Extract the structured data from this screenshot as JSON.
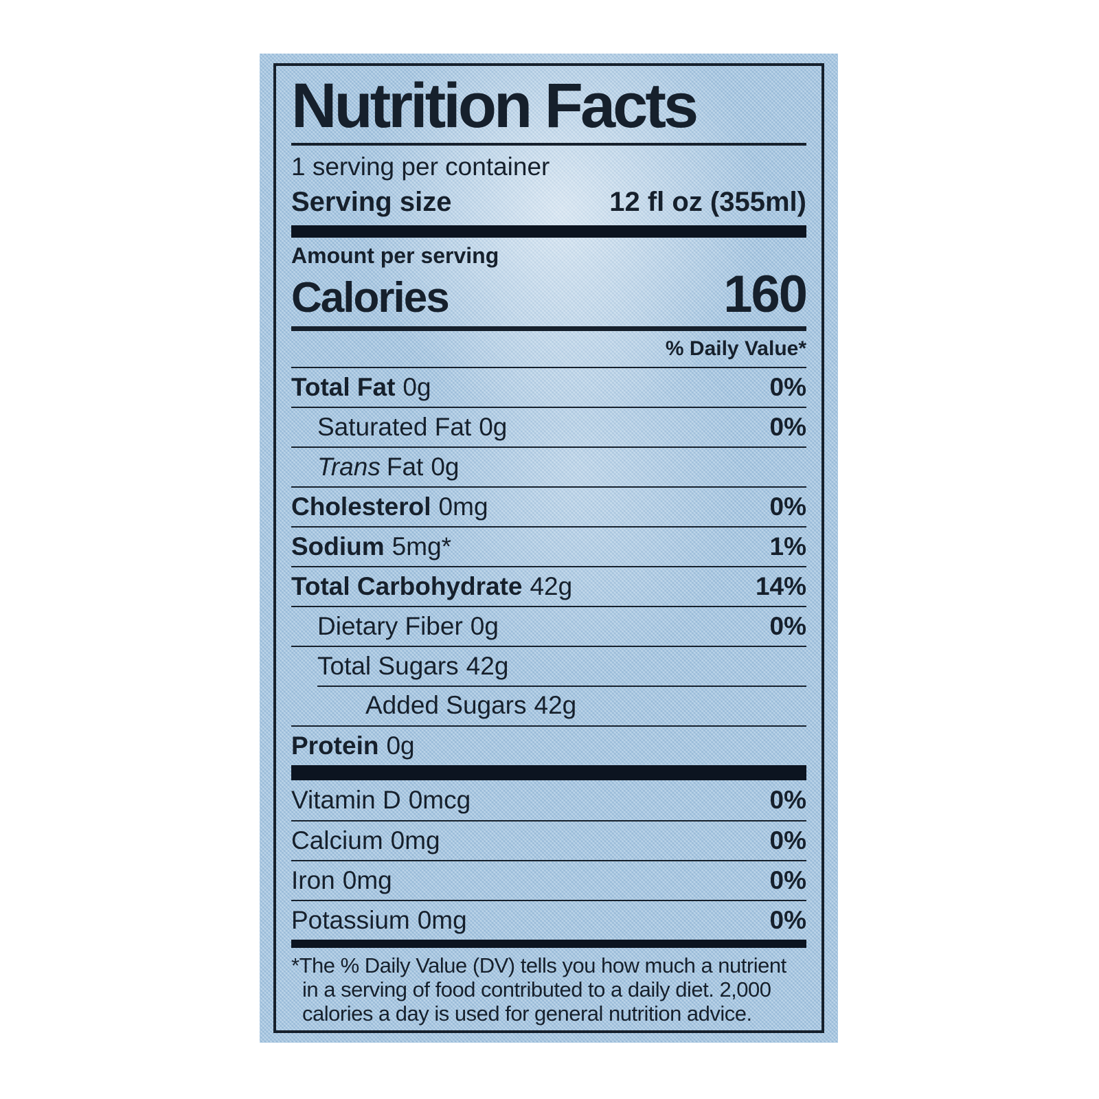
{
  "colors": {
    "label_bg": "#a9c8e2",
    "ink": "#16202c",
    "bar": "#0c1420",
    "page_bg": "#ffffff"
  },
  "label": {
    "title": "Nutrition Facts",
    "servings_per_container": "1 serving per container",
    "serving_size": {
      "label": "Serving size",
      "value": "12 fl oz (355ml)"
    },
    "amount_per_serving": "Amount per serving",
    "calories": {
      "label": "Calories",
      "value": "160"
    },
    "daily_value_header": "% Daily Value*",
    "rows": [
      {
        "name": "Total Fat",
        "amount": "0g",
        "dv": "0%"
      },
      {
        "name": "Saturated Fat",
        "amount": "0g",
        "dv": "0%"
      },
      {
        "name_italic": "Trans",
        "name": "Fat",
        "amount": "0g",
        "dv": ""
      },
      {
        "name": "Cholesterol",
        "amount": "0mg",
        "dv": "0%"
      },
      {
        "name": "Sodium",
        "amount": "5mg*",
        "dv": "1%"
      },
      {
        "name": "Total Carbohydrate",
        "amount": "42g",
        "dv": "14%"
      },
      {
        "name": "Dietary Fiber",
        "amount": "0g",
        "dv": "0%"
      },
      {
        "name": "Total Sugars",
        "amount": "42g",
        "dv": ""
      },
      {
        "name": "Added Sugars",
        "amount": "42g",
        "dv": ""
      },
      {
        "name": "Protein",
        "amount": "0g",
        "dv": ""
      }
    ],
    "micronutrients": [
      {
        "name": "Vitamin D",
        "amount": "0mcg",
        "dv": "0%"
      },
      {
        "name": "Calcium",
        "amount": "0mg",
        "dv": "0%"
      },
      {
        "name": "Iron",
        "amount": "0mg",
        "dv": "0%"
      },
      {
        "name": "Potassium",
        "amount": "0mg",
        "dv": "0%"
      }
    ],
    "footnote": "*The % Daily Value (DV) tells you how much a nutrient in a serving of food contributed to a daily diet. 2,000 calories a day is used for general nutrition advice."
  }
}
